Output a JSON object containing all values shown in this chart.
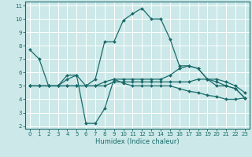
{
  "xlabel": "Humidex (Indice chaleur)",
  "bg_color": "#cce8e8",
  "grid_color": "#ffffff",
  "line_color": "#1a6b6b",
  "xlim": [
    -0.5,
    23.5
  ],
  "ylim": [
    1.8,
    11.3
  ],
  "xticks": [
    0,
    1,
    2,
    3,
    4,
    5,
    6,
    7,
    8,
    9,
    10,
    11,
    12,
    13,
    14,
    15,
    16,
    17,
    18,
    19,
    20,
    21,
    22,
    23
  ],
  "yticks": [
    2,
    3,
    4,
    5,
    6,
    7,
    8,
    9,
    10,
    11
  ],
  "lines": [
    {
      "x": [
        0,
        1,
        2,
        3,
        4,
        5,
        6,
        7,
        8,
        9,
        10,
        11,
        12,
        13,
        14,
        15,
        16,
        17,
        18,
        19,
        20,
        21,
        22,
        23
      ],
      "y": [
        7.7,
        7.0,
        5.0,
        5.0,
        5.5,
        5.8,
        5.0,
        5.5,
        8.3,
        8.3,
        9.9,
        10.4,
        10.8,
        10.0,
        10.0,
        8.5,
        6.5,
        6.5,
        6.3,
        5.5,
        5.0,
        5.0,
        4.8,
        4.1
      ]
    },
    {
      "x": [
        0,
        1,
        2,
        3,
        4,
        5,
        6,
        7,
        8,
        9,
        10,
        11,
        12,
        13,
        14,
        15,
        16,
        17,
        18,
        19,
        20,
        21,
        22,
        23
      ],
      "y": [
        5.0,
        5.0,
        5.0,
        5.0,
        5.8,
        5.8,
        2.2,
        2.2,
        3.3,
        5.5,
        5.2,
        5.0,
        5.0,
        5.0,
        5.0,
        5.0,
        4.8,
        4.6,
        4.5,
        4.3,
        4.2,
        4.0,
        4.0,
        4.1
      ]
    },
    {
      "x": [
        0,
        1,
        2,
        3,
        4,
        5,
        6,
        7,
        8,
        9,
        10,
        11,
        12,
        13,
        14,
        15,
        16,
        17,
        18,
        19,
        20,
        21,
        22,
        23
      ],
      "y": [
        5.0,
        5.0,
        5.0,
        5.0,
        5.0,
        5.0,
        5.0,
        5.0,
        5.0,
        5.3,
        5.3,
        5.3,
        5.3,
        5.3,
        5.3,
        5.3,
        5.3,
        5.3,
        5.5,
        5.5,
        5.5,
        5.3,
        5.0,
        4.5
      ]
    },
    {
      "x": [
        0,
        1,
        2,
        3,
        4,
        5,
        6,
        7,
        8,
        9,
        10,
        11,
        12,
        13,
        14,
        15,
        16,
        17,
        18,
        19,
        20,
        21,
        22,
        23
      ],
      "y": [
        5.0,
        5.0,
        5.0,
        5.0,
        5.0,
        5.0,
        5.0,
        5.0,
        5.3,
        5.5,
        5.5,
        5.5,
        5.5,
        5.5,
        5.5,
        5.8,
        6.3,
        6.5,
        6.3,
        5.5,
        5.3,
        5.0,
        4.8,
        4.1
      ]
    }
  ]
}
